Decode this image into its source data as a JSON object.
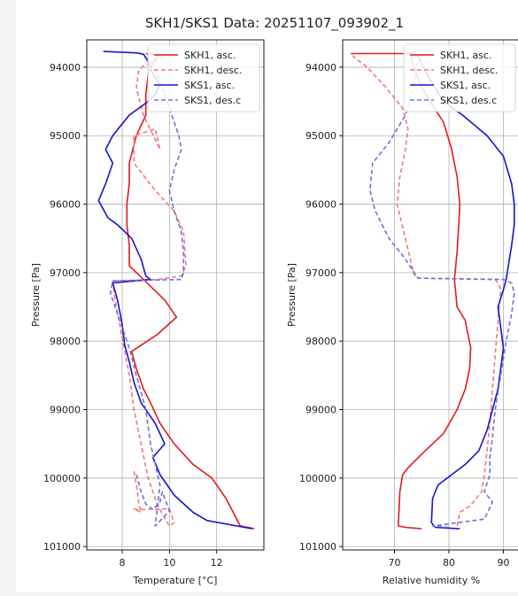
{
  "figure": {
    "title": "SKH1/SKS1 Data: 20251107_093902_1"
  },
  "chart_data": [
    {
      "type": "line",
      "xlabel": "Temperature [°C]",
      "ylabel": "Pressure [Pa]",
      "xlim": [
        6.5,
        14.0
      ],
      "ylim": [
        101050,
        93600
      ],
      "y_inverted": true,
      "grid": true,
      "legend_position": "top-right",
      "xticks": [
        8,
        10,
        12
      ],
      "xtick_labels": [
        "8",
        "10",
        "12"
      ],
      "yticks": [
        94000,
        95000,
        96000,
        97000,
        98000,
        99000,
        100000,
        101000
      ],
      "ytick_labels": [
        "94000",
        "95000",
        "96000",
        "97000",
        "98000",
        "99000",
        "100000",
        "101000"
      ],
      "series": [
        {
          "name": "SKH1, asc.",
          "color": "#e31a1c",
          "dash": "solid",
          "x": [
            13.6,
            13.0,
            12.4,
            11.8,
            11.0,
            10.2,
            9.6,
            9.2,
            8.9,
            8.6,
            8.4,
            9.5,
            10.3,
            9.8,
            8.9,
            8.3,
            8.3,
            8.2,
            8.2,
            8.3,
            8.3,
            8.6,
            9.0,
            9.0,
            9.1,
            9.3,
            9.6,
            9.0
          ],
          "y": [
            100740,
            100700,
            100300,
            100000,
            99800,
            99500,
            99200,
            98900,
            98700,
            98400,
            98150,
            97900,
            97650,
            97400,
            97100,
            96900,
            96600,
            96300,
            96000,
            95700,
            95400,
            95000,
            94700,
            94400,
            94100,
            93920,
            93820,
            93800
          ]
        },
        {
          "name": "SKH1, desc.",
          "color": "#f07c7c",
          "dash": "5,3",
          "x": [
            8.5,
            8.6,
            8.7,
            8.8,
            8.5,
            8.6,
            10.0,
            10.2,
            10.0,
            9.5,
            9.1,
            8.8,
            8.5,
            8.3,
            7.7,
            7.6,
            9.5,
            10.5,
            10.7,
            10.6,
            10.2,
            9.4,
            8.5,
            8.5,
            9.4,
            9.6,
            8.9,
            8.6,
            8.7,
            8.9,
            9.8
          ],
          "y": [
            99900,
            100100,
            100350,
            100500,
            100450,
            100460,
            100450,
            100650,
            100700,
            100400,
            100000,
            99500,
            99000,
            98500,
            97400,
            97120,
            97100,
            97050,
            96900,
            96400,
            96100,
            95800,
            95400,
            95000,
            94900,
            95200,
            94700,
            94300,
            94050,
            93980,
            93850
          ]
        },
        {
          "name": "SKS1, asc.",
          "color": "#1515cc",
          "dash": "solid",
          "x": [
            13.5,
            11.6,
            11.0,
            10.2,
            9.6,
            9.3,
            9.8,
            9.4,
            8.8,
            8.5,
            8.3,
            8.1,
            8.0,
            7.8,
            7.6,
            9.2,
            9.0,
            8.8,
            8.4,
            7.8,
            7.4,
            7.0,
            7.3,
            7.6,
            7.3,
            7.6,
            8.3,
            9.1,
            9.4,
            9.6,
            9.3,
            9.1,
            8.9,
            8.6,
            7.2
          ],
          "y": [
            100740,
            100620,
            100500,
            100250,
            99950,
            99700,
            99500,
            99200,
            98900,
            98600,
            98300,
            98050,
            97750,
            97400,
            97150,
            97100,
            97050,
            96800,
            96500,
            96300,
            96200,
            95950,
            95700,
            95400,
            95200,
            95000,
            94700,
            94500,
            94400,
            94250,
            94100,
            93920,
            93810,
            93790,
            93770
          ]
        },
        {
          "name": "SKS1, des.c",
          "color": "#7070e0",
          "dash": "5,3",
          "x": [
            8.6,
            8.8,
            9.0,
            9.3,
            9.6,
            9.7,
            10.0,
            9.4,
            9.6,
            9.2,
            9.0,
            8.6,
            8.3,
            7.9,
            7.5,
            7.6,
            10.5,
            10.6,
            10.6,
            10.5,
            10.2,
            10.0,
            10.2,
            10.5,
            10.4,
            10.2,
            9.9,
            9.6,
            9.3,
            9.0
          ],
          "y": [
            99950,
            100200,
            100380,
            100460,
            100350,
            100200,
            100480,
            100700,
            100100,
            99500,
            99000,
            98500,
            98100,
            97700,
            97300,
            97120,
            97100,
            97000,
            96700,
            96400,
            96100,
            95800,
            95500,
            95200,
            95000,
            94800,
            94500,
            94200,
            93950,
            93850
          ]
        }
      ]
    },
    {
      "type": "line",
      "xlabel": "Relative humidity %",
      "ylabel": "Pressure [Pa]",
      "xlim": [
        60.5,
        93.0
      ],
      "ylim": [
        101050,
        93600
      ],
      "y_inverted": true,
      "grid": true,
      "legend_position": "top-right",
      "xticks": [
        70,
        80,
        90
      ],
      "xtick_labels": [
        "70",
        "80",
        "90"
      ],
      "yticks": [
        94000,
        95000,
        96000,
        97000,
        98000,
        99000,
        100000,
        101000
      ],
      "ytick_labels": [
        "94000",
        "95000",
        "96000",
        "97000",
        "98000",
        "99000",
        "100000",
        "101000"
      ],
      "series": [
        {
          "name": "SKH1, asc.",
          "color": "#e31a1c",
          "dash": "solid",
          "x": [
            75.0,
            72.0,
            70.7,
            71.0,
            71.5,
            72.5,
            75.0,
            79.0,
            81.5,
            83.0,
            83.8,
            84.0,
            83.5,
            83.0,
            81.5,
            81.0,
            81.5,
            81.8,
            82.0,
            81.5,
            80.5,
            79.0,
            76.5,
            74.5,
            73.5,
            73.0,
            62.0
          ],
          "y": [
            100740,
            100720,
            100700,
            100200,
            99950,
            99850,
            99650,
            99350,
            99000,
            98700,
            98400,
            98100,
            97900,
            97700,
            97500,
            97100,
            96700,
            96300,
            96000,
            95600,
            95200,
            94800,
            94500,
            94200,
            94000,
            93800,
            93800
          ]
        },
        {
          "name": "SKH1, desc.",
          "color": "#f07c7c",
          "dash": "5,3",
          "x": [
            81.5,
            82.0,
            84.0,
            86.0,
            86.5,
            87.0,
            87.5,
            88.0,
            88.5,
            89.0,
            89.5,
            89.0,
            88.5,
            74.0,
            73.5,
            72.0,
            70.5,
            71.0,
            72.0,
            72.5,
            71.5,
            68.5,
            65.0,
            63.0,
            62.3
          ],
          "y": [
            100700,
            100500,
            100400,
            100200,
            99950,
            99600,
            99200,
            98700,
            98200,
            97700,
            97250,
            97150,
            97100,
            97080,
            97000,
            96500,
            96000,
            95600,
            95200,
            94900,
            94600,
            94300,
            94000,
            93880,
            93830
          ]
        },
        {
          "name": "SKS1, asc.",
          "color": "#1515cc",
          "dash": "solid",
          "x": [
            82.0,
            77.5,
            76.8,
            77.0,
            78.0,
            80.5,
            83.0,
            85.5,
            87.0,
            88.0,
            89.0,
            89.5,
            90.0,
            89.5,
            89.0,
            90.0,
            90.5,
            91.5,
            92.0,
            92.0,
            91.5,
            90.0,
            87.0,
            82.5,
            79.0,
            77.5,
            76.0,
            75.0,
            74.5,
            73.0
          ],
          "y": [
            100740,
            100720,
            100650,
            100300,
            100100,
            99950,
            99800,
            99600,
            99300,
            99000,
            98700,
            98400,
            98100,
            97800,
            97500,
            97250,
            97100,
            96600,
            96300,
            96000,
            95700,
            95300,
            95000,
            94700,
            94500,
            94300,
            94100,
            93950,
            93850,
            93800
          ]
        },
        {
          "name": "SKS1, des.c",
          "color": "#7070e0",
          "dash": "5,3",
          "x": [
            80.0,
            77.0,
            86.5,
            88.0,
            86.5,
            87.5,
            87.5,
            88.0,
            88.5,
            89.5,
            90.5,
            91.5,
            92.0,
            91.5,
            90.0,
            74.5,
            74.0,
            72.0,
            69.0,
            66.5,
            65.5,
            66.0,
            69.0,
            72.0,
            73.5,
            74.0,
            74.5
          ],
          "y": [
            100720,
            100700,
            100600,
            100350,
            100200,
            99950,
            99700,
            99400,
            99000,
            98500,
            98000,
            97600,
            97300,
            97150,
            97100,
            97080,
            97050,
            96800,
            96500,
            96100,
            95800,
            95400,
            95100,
            94700,
            94300,
            94000,
            93850
          ]
        }
      ]
    }
  ]
}
